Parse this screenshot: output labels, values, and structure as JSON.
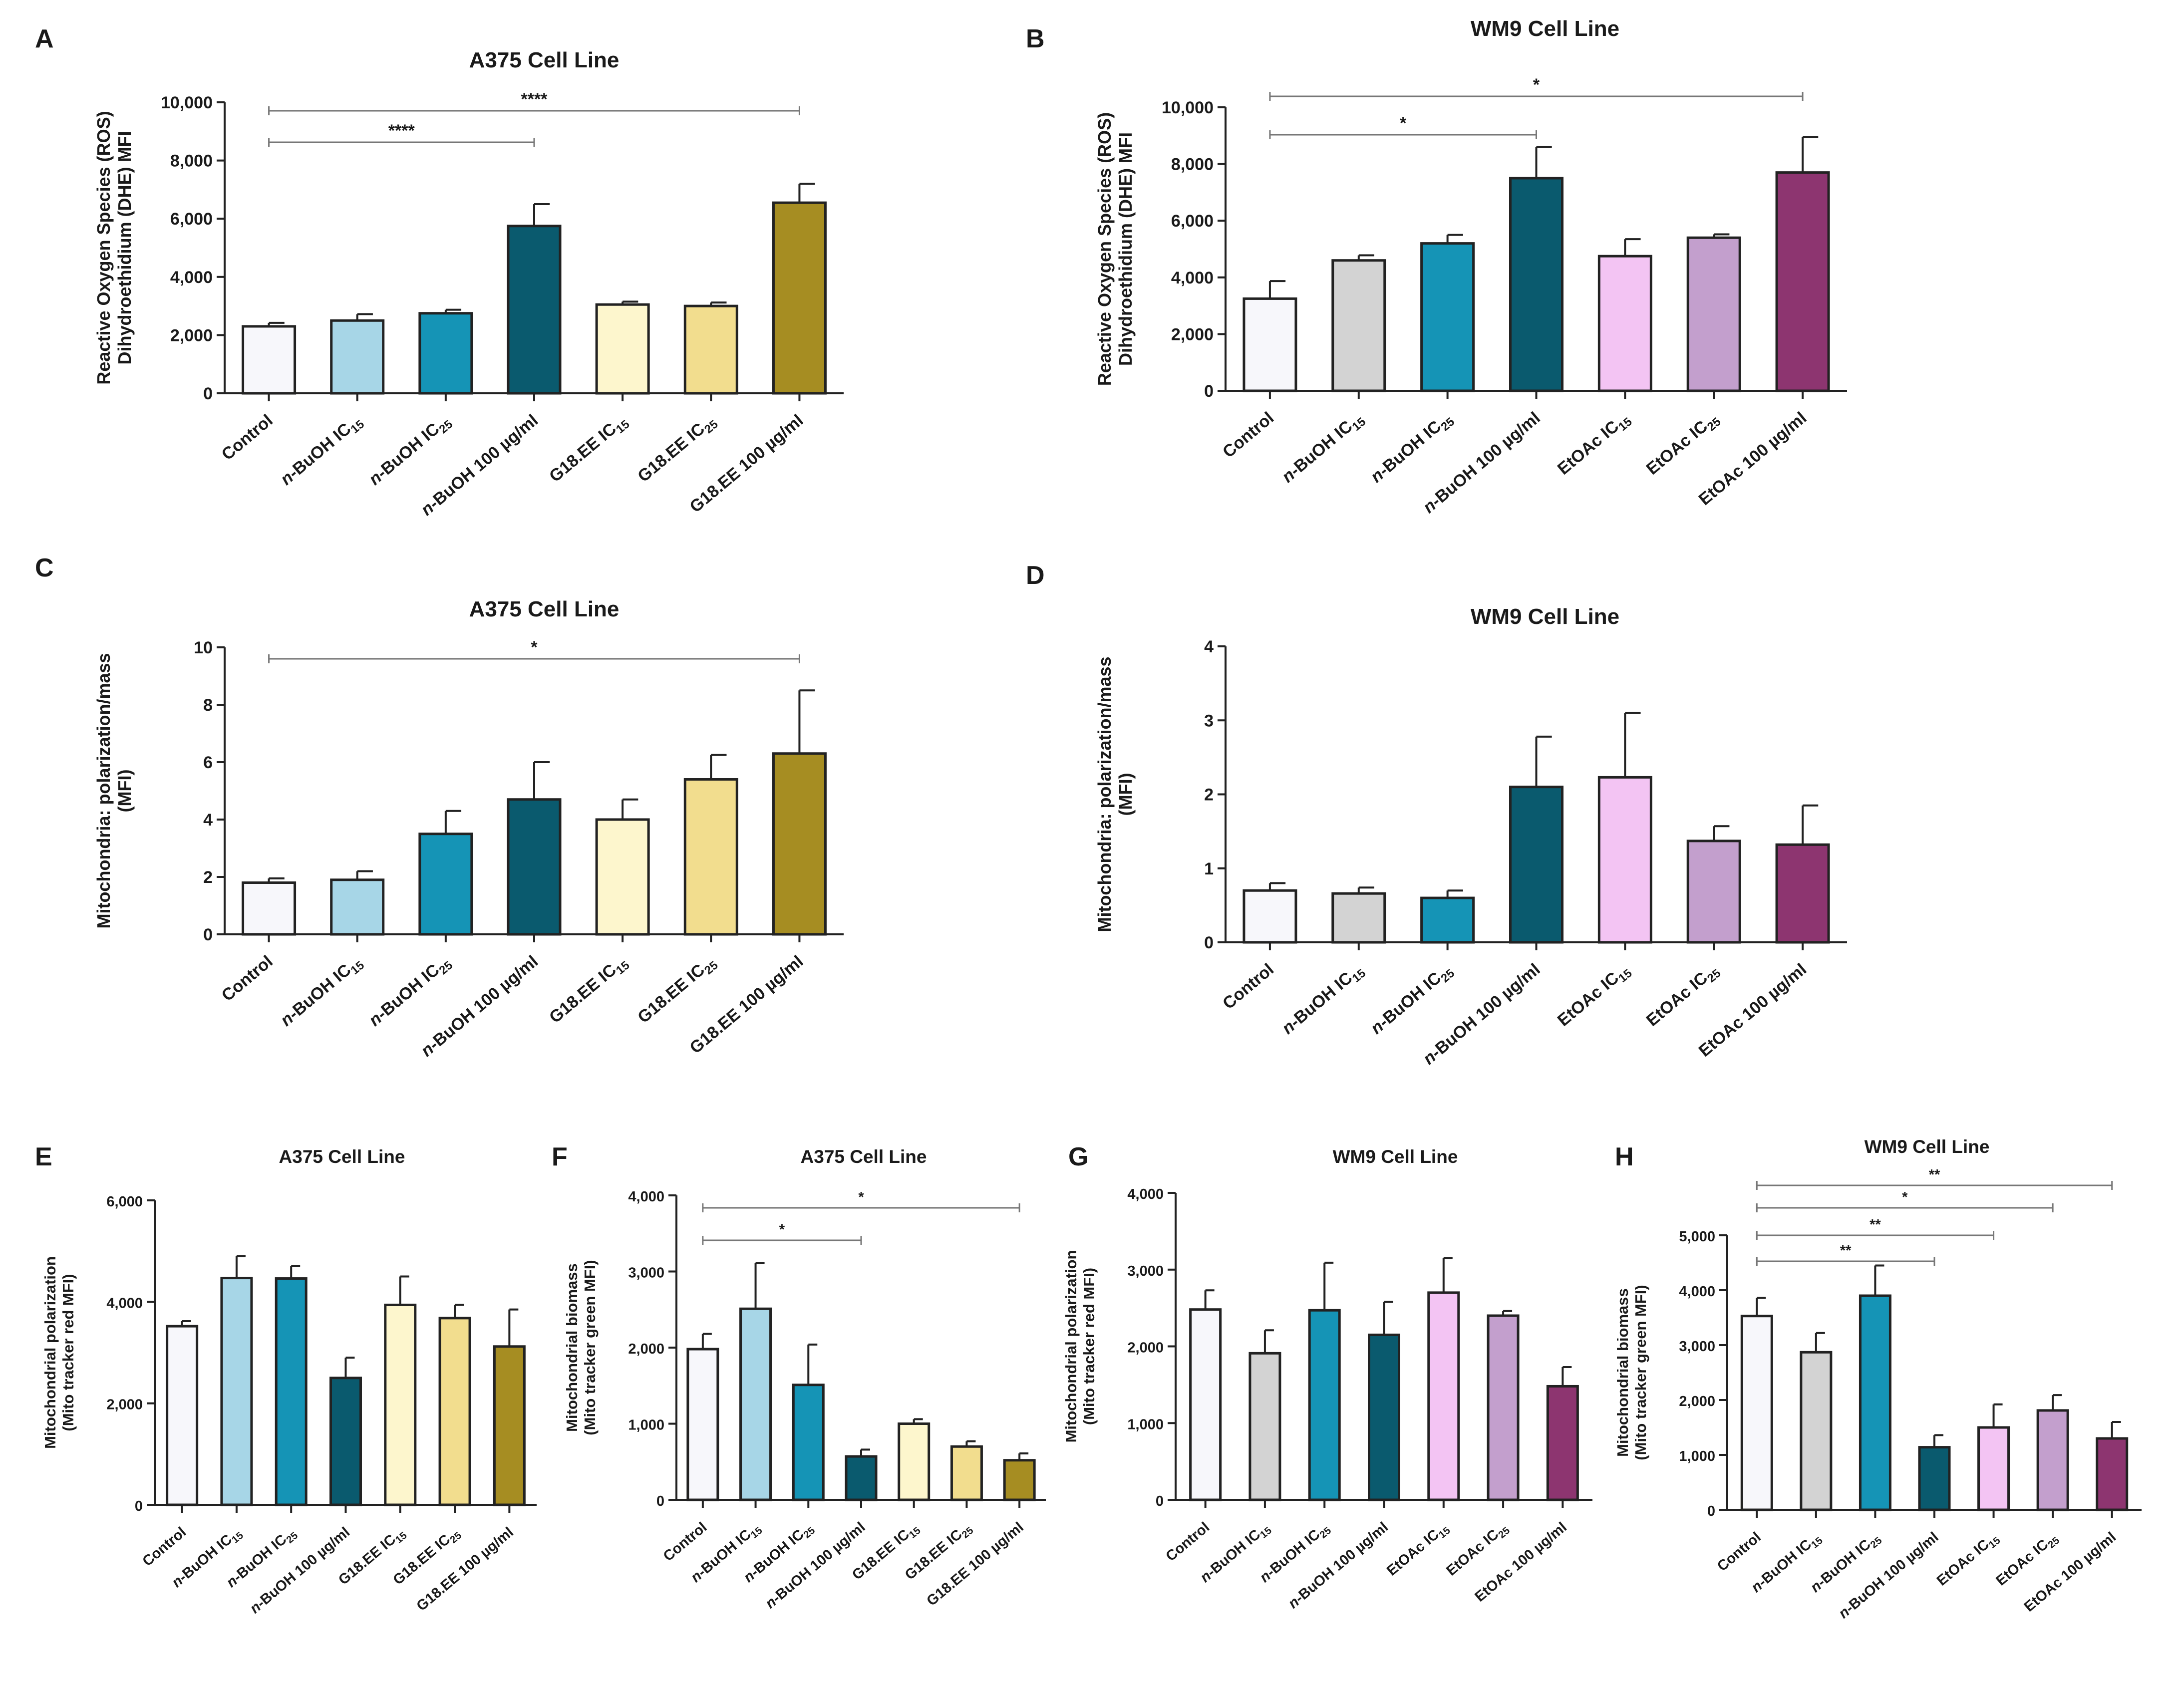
{
  "chart_data": [
    {
      "panel": "A",
      "type": "bar",
      "title": "A375 Cell Line",
      "ylabel": [
        "Reactive Oxygen Species (ROS)",
        "Dihydroethidium (DHE) MFI"
      ],
      "ylim": [
        0,
        10000
      ],
      "yticks": [
        0,
        2000,
        4000,
        6000,
        8000,
        10000
      ],
      "ytick_labels": [
        "0",
        "2,000",
        "4,000",
        "6,000",
        "8,000",
        "10,000"
      ],
      "categories": [
        "Control",
        "n-BuOH IC15",
        "n-BuOH IC25",
        "n-BuOH 100 µg/ml",
        "G18.EE IC15",
        "G18.EE IC25",
        "G18.EE 100 µg/ml"
      ],
      "values": [
        2300,
        2500,
        2750,
        5750,
        3050,
        3000,
        6550
      ],
      "errors": [
        120,
        220,
        120,
        750,
        100,
        120,
        650
      ],
      "colors": [
        "#f7f7fb",
        "#a7d6e7",
        "#1594b6",
        "#0a5a6e",
        "#fdf6cd",
        "#f2dd8e",
        "#a68d22"
      ],
      "significance": [
        {
          "from": 0,
          "to": 6,
          "label": "****"
        },
        {
          "from": 0,
          "to": 3,
          "label": "****"
        }
      ]
    },
    {
      "panel": "B",
      "type": "bar",
      "title": "WM9 Cell Line",
      "ylabel": [
        "Reactive Oxygen Species (ROS)",
        "Dihydroethidium (DHE) MFI"
      ],
      "ylim": [
        0,
        10000
      ],
      "yticks": [
        0,
        2000,
        4000,
        6000,
        8000,
        10000
      ],
      "ytick_labels": [
        "0",
        "2,000",
        "4,000",
        "6,000",
        "8,000",
        "10,000"
      ],
      "categories": [
        "Control",
        "n-BuOH IC15",
        "n-BuOH IC25",
        "n-BuOH 100 µg/ml",
        "EtOAc IC15",
        "EtOAc IC25",
        "EtOAc 100 µg/ml"
      ],
      "values": [
        3250,
        4600,
        5200,
        7500,
        4750,
        5400,
        7700
      ],
      "errors": [
        620,
        180,
        300,
        1100,
        600,
        120,
        1250
      ],
      "colors": [
        "#f7f7fb",
        "#d3d3d3",
        "#1594b6",
        "#0a5a6e",
        "#f3c4f3",
        "#c39fcd",
        "#8d3570"
      ],
      "significance": [
        {
          "from": 0,
          "to": 6,
          "label": "*"
        },
        {
          "from": 0,
          "to": 3,
          "label": "*"
        }
      ]
    },
    {
      "panel": "C",
      "type": "bar",
      "title": "A375 Cell Line",
      "ylabel": [
        "Mitochondria: polarization/mass",
        "(MFI)"
      ],
      "ylim": [
        0,
        10
      ],
      "yticks": [
        0,
        2,
        4,
        6,
        8,
        10
      ],
      "ytick_labels": [
        "0",
        "2",
        "4",
        "6",
        "8",
        "10"
      ],
      "categories": [
        "Control",
        "n-BuOH IC15",
        "n-BuOH IC25",
        "n-BuOH 100 µg/ml",
        "G18.EE IC15",
        "G18.EE IC25",
        "G18.EE 100 µg/ml"
      ],
      "values": [
        1.8,
        1.9,
        3.5,
        4.7,
        4.0,
        5.4,
        6.3
      ],
      "errors": [
        0.15,
        0.3,
        0.8,
        1.3,
        0.7,
        0.85,
        2.2
      ],
      "colors": [
        "#f7f7fb",
        "#a7d6e7",
        "#1594b6",
        "#0a5a6e",
        "#fdf6cd",
        "#f2dd8e",
        "#a68d22"
      ],
      "significance": [
        {
          "from": 0,
          "to": 6,
          "label": "*"
        }
      ]
    },
    {
      "panel": "D",
      "type": "bar",
      "title": "WM9 Cell Line",
      "ylabel": [
        "Mitochondria: polarization/mass",
        "(MFI)"
      ],
      "ylim": [
        0,
        4
      ],
      "yticks": [
        0,
        1,
        2,
        3,
        4
      ],
      "ytick_labels": [
        "0",
        "1",
        "2",
        "3",
        "4"
      ],
      "categories": [
        "Control",
        "n-BuOH IC15",
        "n-BuOH IC25",
        "n-BuOH 100 µg/ml",
        "EtOAc IC15",
        "EtOAc IC25",
        "EtOAc 100 µg/ml"
      ],
      "values": [
        0.7,
        0.66,
        0.6,
        2.1,
        2.23,
        1.37,
        1.32
      ],
      "errors": [
        0.1,
        0.08,
        0.1,
        0.68,
        0.87,
        0.2,
        0.53
      ],
      "colors": [
        "#f7f7fb",
        "#d3d3d3",
        "#1594b6",
        "#0a5a6e",
        "#f3c4f3",
        "#c39fcd",
        "#8d3570"
      ],
      "significance": []
    },
    {
      "panel": "E",
      "type": "bar",
      "title": "A375 Cell Line",
      "ylabel": [
        "Mitochondrial polarization",
        "(Mito tracker red MFI)"
      ],
      "ylim": [
        0,
        6000
      ],
      "yticks": [
        0,
        2000,
        4000,
        6000
      ],
      "ytick_labels": [
        "0",
        "2,000",
        "4,000",
        "6,000"
      ],
      "categories": [
        "Control",
        "n-BuOH IC15",
        "n-BuOH IC25",
        "n-BuOH 100 µg/ml",
        "G18.EE IC15",
        "G18.EE IC25",
        "G18.EE 100 µg/ml"
      ],
      "values": [
        3520,
        4470,
        4460,
        2500,
        3940,
        3680,
        3120
      ],
      "errors": [
        100,
        430,
        250,
        400,
        560,
        260,
        730
      ],
      "colors": [
        "#f7f7fb",
        "#a7d6e7",
        "#1594b6",
        "#0a5a6e",
        "#fdf6cd",
        "#f2dd8e",
        "#a68d22"
      ],
      "significance": []
    },
    {
      "panel": "F",
      "type": "bar",
      "title": "A375 Cell Line",
      "ylabel": [
        "Mitochondrial biomass",
        "(Mito tracker green MFI)"
      ],
      "ylim": [
        0,
        4000
      ],
      "yticks": [
        0,
        1000,
        2000,
        3000,
        4000
      ],
      "ytick_labels": [
        "0",
        "1,000",
        "2,000",
        "3,000",
        "4,000"
      ],
      "categories": [
        "Control",
        "n-BuOH IC15",
        "n-BuOH IC25",
        "n-BuOH 100 µg/ml",
        "G18.EE IC15",
        "G18.EE IC25",
        "G18.EE 100 µg/ml"
      ],
      "values": [
        1980,
        2510,
        1510,
        570,
        1000,
        700,
        520
      ],
      "errors": [
        200,
        600,
        530,
        90,
        60,
        70,
        90
      ],
      "colors": [
        "#f7f7fb",
        "#a7d6e7",
        "#1594b6",
        "#0a5a6e",
        "#fdf6cd",
        "#f2dd8e",
        "#a68d22"
      ],
      "significance": [
        {
          "from": 0,
          "to": 6,
          "label": "*"
        },
        {
          "from": 0,
          "to": 3,
          "label": "*"
        }
      ]
    },
    {
      "panel": "G",
      "type": "bar",
      "title": "WM9 Cell Line",
      "ylabel": [
        "Mitochondrial polarization",
        "(Mito tracker red MFI)"
      ],
      "ylim": [
        0,
        4000
      ],
      "yticks": [
        0,
        1000,
        2000,
        3000,
        4000
      ],
      "ytick_labels": [
        "0",
        "1,000",
        "2,000",
        "3,000",
        "4,000"
      ],
      "categories": [
        "Control",
        "n-BuOH IC15",
        "n-BuOH IC25",
        "n-BuOH 100 µg/ml",
        "EtOAc IC15",
        "EtOAc IC25",
        "EtOAc 100 µg/ml"
      ],
      "values": [
        2480,
        1910,
        2470,
        2150,
        2700,
        2400,
        1480
      ],
      "errors": [
        250,
        300,
        620,
        430,
        450,
        60,
        250
      ],
      "colors": [
        "#f7f7fb",
        "#d3d3d3",
        "#1594b6",
        "#0a5a6e",
        "#f3c4f3",
        "#c39fcd",
        "#8d3570"
      ],
      "significance": []
    },
    {
      "panel": "H",
      "type": "bar",
      "title": "WM9 Cell Line",
      "ylabel": [
        "Mitochondrial biomass",
        "(Mito tracker green MFI)"
      ],
      "ylim": [
        0,
        5000
      ],
      "yticks": [
        0,
        1000,
        2000,
        3000,
        4000,
        5000
      ],
      "ytick_labels": [
        "0",
        "1,000",
        "2,000",
        "3,000",
        "4,000",
        "5,000"
      ],
      "categories": [
        "Control",
        "n-BuOH IC15",
        "n-BuOH IC25",
        "n-BuOH 100 µg/ml",
        "EtOAc IC15",
        "EtOAc IC25",
        "EtOAc 100 µg/ml"
      ],
      "values": [
        3530,
        2870,
        3900,
        1140,
        1500,
        1810,
        1300
      ],
      "errors": [
        330,
        350,
        550,
        220,
        420,
        280,
        300
      ],
      "colors": [
        "#f7f7fb",
        "#d3d3d3",
        "#1594b6",
        "#0a5a6e",
        "#f3c4f3",
        "#c39fcd",
        "#8d3570"
      ],
      "significance": [
        {
          "from": 0,
          "to": 6,
          "label": "**"
        },
        {
          "from": 0,
          "to": 5,
          "label": "*"
        },
        {
          "from": 0,
          "to": 4,
          "label": "**"
        },
        {
          "from": 0,
          "to": 3,
          "label": "**"
        }
      ]
    }
  ]
}
